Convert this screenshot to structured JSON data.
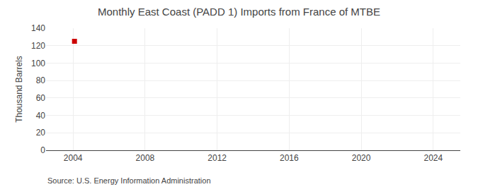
{
  "chart_data": {
    "type": "scatter",
    "title": "Monthly East Coast (PADD 1) Imports from France of MTBE",
    "ylabel": "Thousand Barrels",
    "annotations": [
      "Source: U.S. Energy Information Administration"
    ],
    "x": [
      2004.08
    ],
    "values": [
      125
    ],
    "color": "#cc0000",
    "marker": "square",
    "xlim": [
      2002.5,
      2025.5
    ],
    "xticks": [
      2004,
      2008,
      2012,
      2016,
      2020,
      2024
    ],
    "ylim": [
      0,
      140
    ],
    "yticks": [
      0,
      20,
      40,
      60,
      80,
      100,
      120,
      140
    ],
    "grid": true
  }
}
